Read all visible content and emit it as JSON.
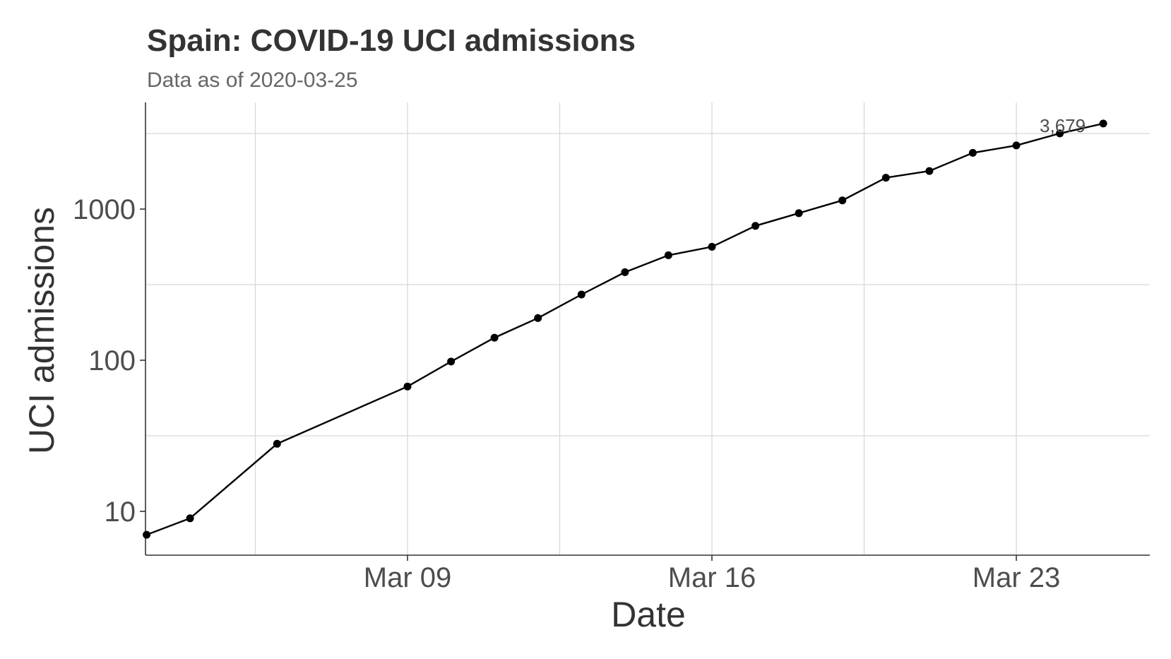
{
  "chart_data": {
    "type": "line",
    "title": "Spain: COVID-19 UCI admissions",
    "subtitle": "Data as of 2020-03-25",
    "xlabel": "Date",
    "ylabel": "UCI admissions",
    "yscale": "log",
    "grid": true,
    "x": [
      "2020-03-03",
      "2020-03-04",
      "2020-03-06",
      "2020-03-09",
      "2020-03-10",
      "2020-03-11",
      "2020-03-12",
      "2020-03-13",
      "2020-03-14",
      "2020-03-15",
      "2020-03-16",
      "2020-03-17",
      "2020-03-18",
      "2020-03-19",
      "2020-03-20",
      "2020-03-21",
      "2020-03-22",
      "2020-03-23",
      "2020-03-24",
      "2020-03-25"
    ],
    "series": [
      {
        "values": [
          7,
          9,
          28,
          67,
          98,
          141,
          190,
          272,
          382,
          495,
          563,
          774,
          939,
          1141,
          1612,
          1785,
          2355,
          2636,
          3166,
          3679
        ]
      }
    ],
    "xticks": [
      "Mar 09",
      "Mar 16",
      "Mar 23"
    ],
    "yticks": [
      "10",
      "100",
      "1000"
    ],
    "annotation": {
      "text": "3,679",
      "x": "2020-03-25",
      "y": 3679
    }
  }
}
